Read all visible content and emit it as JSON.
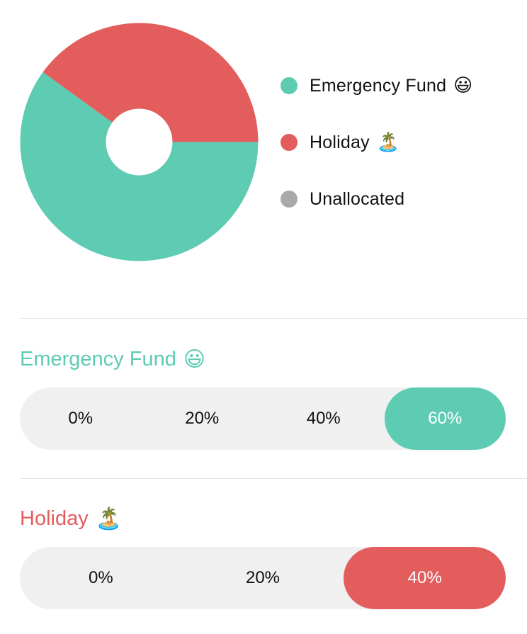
{
  "chart_data": {
    "type": "pie",
    "donut": true,
    "series": [
      {
        "name": "Emergency Fund",
        "value": 60,
        "color": "#5ecbb3"
      },
      {
        "name": "Holiday",
        "value": 40,
        "color": "#e35d5d"
      },
      {
        "name": "Unallocated",
        "value": 0,
        "color": "#a9a9a9"
      }
    ],
    "legend_position": "right"
  },
  "legend": {
    "items": [
      {
        "label": "Emergency Fund",
        "emoji": "😃",
        "color": "#5ecbb3"
      },
      {
        "label": "Holiday",
        "emoji": "🏝️",
        "color": "#e35d5d"
      },
      {
        "label": "Unallocated",
        "emoji": "",
        "color": "#a9a9a9"
      }
    ]
  },
  "allocations": [
    {
      "title": "Emergency Fund",
      "emoji": "😃",
      "color": "#5ecbb3",
      "options": [
        "0%",
        "20%",
        "40%",
        "60%"
      ],
      "selected": "60%"
    },
    {
      "title": "Holiday",
      "emoji": "🏝️",
      "color": "#e35d5d",
      "options": [
        "0%",
        "20%",
        "40%"
      ],
      "selected": "40%"
    }
  ]
}
